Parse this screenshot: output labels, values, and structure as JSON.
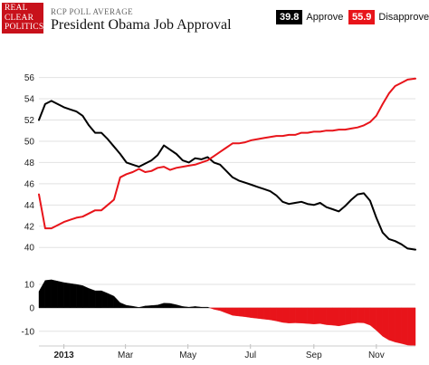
{
  "header": {
    "logo_lines": [
      "REAL",
      "CLEAR",
      "POLITICS"
    ],
    "eyebrow": "RCP POLL AVERAGE",
    "title": "President Obama Job Approval"
  },
  "legend": [
    {
      "value": "39.8",
      "label": "Approve",
      "color": "#000000"
    },
    {
      "value": "55.9",
      "label": "Disapprove",
      "color": "#e8141a"
    }
  ],
  "chart_data": [
    {
      "type": "line",
      "x_ticks": [
        {
          "label": "2013",
          "x": 0
        },
        {
          "label": "Mar",
          "x": 1.97
        },
        {
          "label": "May",
          "x": 3.97
        },
        {
          "label": "Jul",
          "x": 5.97
        },
        {
          "label": "Sep",
          "x": 8.0
        },
        {
          "label": "Nov",
          "x": 10.0
        }
      ],
      "x_range": [
        -0.8,
        11.25
      ],
      "ylim": [
        38.4,
        57.5
      ],
      "yticks": [
        40,
        42,
        44,
        46,
        48,
        50,
        52,
        54,
        56
      ],
      "grid": "horizontal",
      "x": [
        -0.8,
        -0.6,
        -0.4,
        -0.2,
        0,
        0.2,
        0.4,
        0.6,
        0.8,
        1.0,
        1.2,
        1.4,
        1.6,
        1.8,
        2.0,
        2.2,
        2.4,
        2.6,
        2.8,
        3.0,
        3.2,
        3.4,
        3.6,
        3.8,
        4.0,
        4.2,
        4.4,
        4.6,
        4.8,
        5.0,
        5.2,
        5.4,
        5.6,
        5.8,
        6.0,
        6.2,
        6.4,
        6.6,
        6.8,
        7.0,
        7.2,
        7.4,
        7.6,
        7.8,
        8.0,
        8.2,
        8.4,
        8.6,
        8.8,
        9.0,
        9.2,
        9.4,
        9.6,
        9.8,
        10.0,
        10.2,
        10.4,
        10.6,
        10.8,
        11.0,
        11.25
      ],
      "series": [
        {
          "color": "#000000",
          "values": [
            52,
            53.5,
            53.8,
            53.5,
            53.2,
            53.0,
            52.8,
            52.4,
            51.5,
            50.8,
            50.8,
            50.2,
            49.5,
            48.8,
            48.0,
            47.8,
            47.6,
            47.9,
            48.2,
            48.7,
            49.6,
            49.2,
            48.8,
            48.2,
            48.0,
            48.4,
            48.3,
            48.5,
            48.0,
            47.8,
            47.2,
            46.6,
            46.3,
            46.1,
            45.9,
            45.7,
            45.5,
            45.3,
            44.9,
            44.3,
            44.1,
            44.2,
            44.3,
            44.1,
            44.0,
            44.2,
            43.8,
            43.6,
            43.4,
            43.9,
            44.5,
            45.0,
            45.1,
            44.4,
            42.8,
            41.4,
            40.8,
            40.6,
            40.3,
            39.9,
            39.8
          ]
        },
        {
          "color": "#e8141a",
          "values": [
            45.0,
            41.8,
            41.8,
            42.1,
            42.4,
            42.6,
            42.8,
            42.9,
            43.2,
            43.5,
            43.5,
            44.0,
            44.5,
            46.6,
            46.9,
            47.1,
            47.4,
            47.1,
            47.2,
            47.5,
            47.6,
            47.3,
            47.5,
            47.6,
            47.7,
            47.8,
            48.0,
            48.2,
            48.6,
            49.0,
            49.4,
            49.8,
            49.8,
            49.9,
            50.1,
            50.2,
            50.3,
            50.4,
            50.5,
            50.5,
            50.6,
            50.6,
            50.8,
            50.8,
            50.9,
            50.9,
            51.0,
            51.0,
            51.1,
            51.1,
            51.2,
            51.3,
            51.5,
            51.8,
            52.4,
            53.5,
            54.5,
            55.2,
            55.5,
            55.8,
            55.9
          ]
        }
      ]
    },
    {
      "type": "area",
      "ylim": [
        -15.5,
        13.5
      ],
      "yticks": [
        -10,
        0,
        10
      ],
      "positive_color": "#000000",
      "negative_color": "#e8141a",
      "note": "net approval = approve minus disapprove, plotted on the same x axis"
    }
  ]
}
